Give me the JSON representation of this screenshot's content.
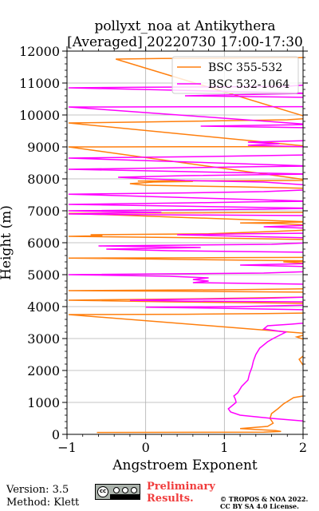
{
  "chart_data": {
    "type": "line",
    "title_line1": "pollyxt_noa at Antikythera",
    "title_line2": "[Averaged] 20220730 17:00-17:30",
    "xlabel": "Angstroem Exponent",
    "ylabel": "Height (m)",
    "xlim": [
      -1,
      2
    ],
    "ylim": [
      0,
      12000
    ],
    "x_ticks": [
      "−1",
      "0",
      "1",
      "2"
    ],
    "y_ticks": [
      "0",
      "1000",
      "2000",
      "3000",
      "4000",
      "5000",
      "6000",
      "7000",
      "8000",
      "9000",
      "10000",
      "11000",
      "12000"
    ],
    "grid": true,
    "legend_position": "top-right",
    "series": [
      {
        "name": "BSC 355-532",
        "color": "#ff7f0e",
        "points": [
          [
            -0.62,
            60
          ],
          [
            0.8,
            65
          ],
          [
            1.5,
            70
          ],
          [
            1.72,
            90
          ],
          [
            1.65,
            120
          ],
          [
            1.2,
            180
          ],
          [
            1.55,
            250
          ],
          [
            1.62,
            350
          ],
          [
            1.58,
            500
          ],
          [
            1.6,
            650
          ],
          [
            1.68,
            800
          ],
          [
            1.75,
            950
          ],
          [
            1.88,
            1150
          ],
          [
            2.0,
            1200
          ],
          [
            2.05,
            1300
          ],
          [
            2.1,
            1800
          ],
          [
            1.95,
            2350
          ],
          [
            2.0,
            2450
          ],
          [
            2.1,
            2500
          ],
          [
            2.1,
            2900
          ],
          [
            1.92,
            3050
          ],
          [
            2.0,
            3100
          ],
          [
            2.1,
            3150
          ],
          [
            -0.98,
            3750
          ],
          [
            0.5,
            3760
          ],
          [
            1.5,
            3780
          ],
          [
            2.1,
            3800
          ],
          [
            2.1,
            4100
          ],
          [
            0.3,
            4150
          ],
          [
            -0.98,
            4200
          ],
          [
            0.8,
            4250
          ],
          [
            2.1,
            4300
          ],
          [
            2.1,
            4450
          ],
          [
            0.5,
            4480
          ],
          [
            -0.98,
            4500
          ],
          [
            1.2,
            4530
          ],
          [
            2.1,
            4560
          ],
          [
            2.1,
            5350
          ],
          [
            1.75,
            5400
          ],
          [
            2.1,
            5430
          ],
          [
            -0.98,
            5520
          ],
          [
            0.8,
            5530
          ],
          [
            2.1,
            5540
          ],
          [
            2.1,
            6100
          ],
          [
            0.8,
            6150
          ],
          [
            -0.98,
            6200
          ],
          [
            -0.55,
            6220
          ],
          [
            -0.7,
            6250
          ],
          [
            0.8,
            6280
          ],
          [
            1.6,
            6350
          ],
          [
            2.1,
            6400
          ],
          [
            2.1,
            6550
          ],
          [
            1.7,
            6600
          ],
          [
            1.2,
            6620
          ],
          [
            2.1,
            6650
          ],
          [
            -0.98,
            6920
          ],
          [
            0.9,
            6940
          ],
          [
            2.1,
            6950
          ],
          [
            2.1,
            7700
          ],
          [
            1.2,
            7750
          ],
          [
            0.0,
            7800
          ],
          [
            -0.2,
            7850
          ],
          [
            0.1,
            7900
          ],
          [
            0.6,
            7920
          ],
          [
            -0.1,
            7930
          ],
          [
            2.1,
            7950
          ],
          [
            -0.98,
            9000
          ],
          [
            0.5,
            9005
          ],
          [
            2.1,
            9010
          ],
          [
            -0.98,
            9750
          ],
          [
            0.0,
            9780
          ],
          [
            1.8,
            9850
          ],
          [
            2.0,
            9880
          ],
          [
            2.1,
            9900
          ],
          [
            -0.38,
            11750
          ],
          [
            0.2,
            11770
          ],
          [
            1.1,
            11780
          ],
          [
            2.1,
            11800
          ]
        ]
      },
      {
        "name": "BSC 532-1064",
        "color": "#ff00ff",
        "points": [
          [
            2.1,
            400
          ],
          [
            1.6,
            500
          ],
          [
            1.2,
            600
          ],
          [
            1.08,
            700
          ],
          [
            1.05,
            800
          ],
          [
            1.1,
            900
          ],
          [
            1.15,
            1000
          ],
          [
            1.14,
            1100
          ],
          [
            1.12,
            1200
          ],
          [
            1.17,
            1300
          ],
          [
            1.22,
            1500
          ],
          [
            1.3,
            1700
          ],
          [
            1.32,
            1900
          ],
          [
            1.35,
            2100
          ],
          [
            1.37,
            2300
          ],
          [
            1.4,
            2500
          ],
          [
            1.45,
            2700
          ],
          [
            1.55,
            2900
          ],
          [
            1.62,
            3000
          ],
          [
            1.7,
            3100
          ],
          [
            1.78,
            3200
          ],
          [
            1.5,
            3300
          ],
          [
            1.55,
            3400
          ],
          [
            1.85,
            3450
          ],
          [
            2.1,
            3500
          ],
          [
            2.1,
            3900
          ],
          [
            0.9,
            3950
          ],
          [
            0.0,
            3980
          ],
          [
            1.2,
            4000
          ],
          [
            2.1,
            4050
          ],
          [
            2.1,
            4150
          ],
          [
            0.5,
            4170
          ],
          [
            -0.2,
            4200
          ],
          [
            0.6,
            4230
          ],
          [
            1.5,
            4260
          ],
          [
            2.1,
            4300
          ],
          [
            2.1,
            4700
          ],
          [
            0.6,
            4750
          ],
          [
            0.8,
            4800
          ],
          [
            0.6,
            4850
          ],
          [
            0.8,
            4900
          ],
          [
            0.3,
            4950
          ],
          [
            -0.98,
            5000
          ],
          [
            1.5,
            5050
          ],
          [
            2.1,
            5100
          ],
          [
            2.1,
            5250
          ],
          [
            1.2,
            5300
          ],
          [
            2.1,
            5350
          ],
          [
            2.1,
            5700
          ],
          [
            0.3,
            5750
          ],
          [
            -0.5,
            5800
          ],
          [
            0.7,
            5850
          ],
          [
            -0.6,
            5900
          ],
          [
            1.6,
            5950
          ],
          [
            2.1,
            6000
          ],
          [
            2.1,
            6150
          ],
          [
            0.4,
            6250
          ],
          [
            1.3,
            6280
          ],
          [
            2.1,
            6300
          ],
          [
            2.1,
            6450
          ],
          [
            1.5,
            6500
          ],
          [
            2.1,
            6550
          ],
          [
            2.1,
            6850
          ],
          [
            -0.3,
            6880
          ],
          [
            -0.98,
            6900
          ],
          [
            0.2,
            6950
          ],
          [
            -0.98,
            7000
          ],
          [
            1.5,
            7050
          ],
          [
            2.1,
            7080
          ],
          [
            -0.98,
            7200
          ],
          [
            0.6,
            7250
          ],
          [
            1.4,
            7280
          ],
          [
            2.1,
            7300
          ],
          [
            -0.98,
            7520
          ],
          [
            0.5,
            7560
          ],
          [
            1.5,
            7600
          ],
          [
            2.0,
            7650
          ],
          [
            2.1,
            7680
          ],
          [
            2.1,
            7800
          ],
          [
            1.5,
            7900
          ],
          [
            0.5,
            7950
          ],
          [
            -0.35,
            8050
          ],
          [
            0.5,
            8100
          ],
          [
            2.1,
            8150
          ],
          [
            -0.98,
            8300
          ],
          [
            0.5,
            8350
          ],
          [
            1.4,
            8380
          ],
          [
            2.1,
            8400
          ],
          [
            -0.98,
            8650
          ],
          [
            0.8,
            8700
          ],
          [
            2.1,
            8750
          ],
          [
            2.1,
            9000
          ],
          [
            1.3,
            9050
          ],
          [
            1.7,
            9100
          ],
          [
            1.3,
            9150
          ],
          [
            2.1,
            9200
          ],
          [
            2.1,
            9600
          ],
          [
            0.7,
            9650
          ],
          [
            2.1,
            9700
          ],
          [
            -0.98,
            10250
          ],
          [
            0.5,
            10255
          ],
          [
            2.1,
            10260
          ],
          [
            2.1,
            10550
          ],
          [
            0.5,
            10600
          ],
          [
            1.5,
            10650
          ],
          [
            2.1,
            10680
          ],
          [
            -0.98,
            10850
          ],
          [
            0.0,
            10870
          ],
          [
            1.0,
            10880
          ],
          [
            1.8,
            10900
          ],
          [
            2.1,
            10950
          ]
        ]
      }
    ]
  },
  "footer": {
    "version": "Version: 3.5",
    "method": "Method: Klett",
    "preliminary_line1": "Preliminary",
    "preliminary_line2": "Results.",
    "copyright_line1": "© TROPOS & NOA 2022.",
    "copyright_line2": "CC BY SA 4.0 License.",
    "license_badge_icon": "cc-by-sa-badge-icon",
    "preliminary_color": "#f03c3c"
  }
}
